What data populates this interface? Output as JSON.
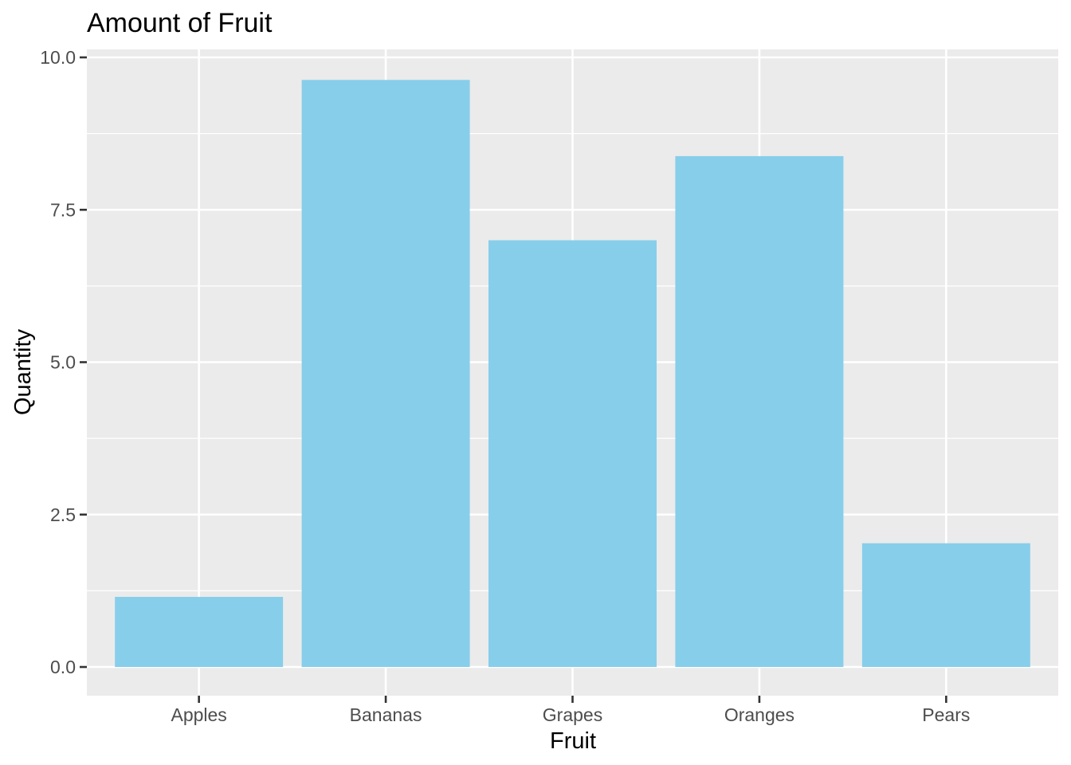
{
  "chart_data": {
    "type": "bar",
    "title": "Amount of Fruit",
    "xlabel": "Fruit",
    "ylabel": "Quantity",
    "categories": [
      "Apples",
      "Bananas",
      "Grapes",
      "Oranges",
      "Pears"
    ],
    "values": [
      1.15,
      9.63,
      7.0,
      8.38,
      2.03
    ],
    "ylim": [
      0,
      10
    ],
    "y_ticks": [
      "0.0",
      "2.5",
      "5.0",
      "7.5",
      "10.0"
    ],
    "grid": true,
    "legend": "none",
    "colors": {
      "bar": "#87CEEB",
      "panel": "#EBEBEB",
      "grid": "#FFFFFF"
    }
  }
}
